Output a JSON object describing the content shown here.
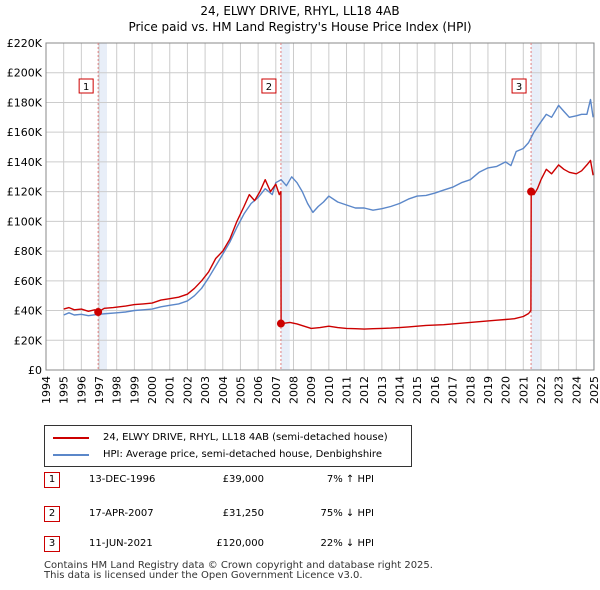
{
  "title_line1": "24, ELWY DRIVE, RHYL, LL18 4AB",
  "title_line2": "Price paid vs. HM Land Registry's House Price Index (HPI)",
  "chart_data": {
    "type": "line",
    "title": "24, ELWY DRIVE, RHYL, LL18 4AB — Price paid vs. HM Land Registry's House Price Index (HPI)",
    "xlabel": "",
    "ylabel": "",
    "xlim": [
      1994,
      2025
    ],
    "ylim": [
      0,
      220000
    ],
    "y_ticks": [
      0,
      20000,
      40000,
      60000,
      80000,
      100000,
      120000,
      140000,
      160000,
      180000,
      200000,
      220000
    ],
    "y_tick_labels": [
      "£0",
      "£20K",
      "£40K",
      "£60K",
      "£80K",
      "£100K",
      "£120K",
      "£140K",
      "£160K",
      "£180K",
      "£200K",
      "£220K"
    ],
    "x_ticks": [
      1994,
      1995,
      1996,
      1997,
      1998,
      1999,
      2000,
      2001,
      2002,
      2003,
      2004,
      2005,
      2006,
      2007,
      2008,
      2009,
      2010,
      2011,
      2012,
      2013,
      2014,
      2015,
      2016,
      2017,
      2018,
      2019,
      2020,
      2021,
      2022,
      2023,
      2024,
      2025
    ],
    "x_tick_labels": [
      "1994",
      "1995",
      "1996",
      "1997",
      "1998",
      "1999",
      "2000",
      "2001",
      "2002",
      "2003",
      "2004",
      "2005",
      "2006",
      "2007",
      "2008",
      "2009",
      "2010",
      "2011",
      "2012",
      "2013",
      "2014",
      "2015",
      "2016",
      "2017",
      "2018",
      "2019",
      "2020",
      "2021",
      "2022",
      "2023",
      "2024",
      "2025"
    ],
    "grid": true,
    "series": [
      {
        "name": "24, ELWY DRIVE, RHYL, LL18 4AB (semi-detached house)",
        "color": "#cc0000",
        "x": [
          1995.0,
          1995.3,
          1995.6,
          1996.0,
          1996.4,
          1996.75,
          1996.95,
          1997.3,
          1997.8,
          1998.5,
          1999.0,
          1999.5,
          2000.0,
          2000.5,
          2001.0,
          2001.5,
          2002.0,
          2002.4,
          2002.8,
          2003.2,
          2003.6,
          2004.0,
          2004.4,
          2004.8,
          2005.2,
          2005.5,
          2005.8,
          2006.1,
          2006.4,
          2006.7,
          2007.0,
          2007.2,
          2007.29,
          2007.3,
          2007.5,
          2007.8,
          2008.2,
          2008.6,
          2009.0,
          2009.5,
          2010.0,
          2010.5,
          2011.0,
          2011.5,
          2012.0,
          2012.5,
          2013.0,
          2013.5,
          2014.0,
          2014.5,
          2015.0,
          2015.5,
          2016.0,
          2016.5,
          2017.0,
          2017.5,
          2018.0,
          2018.5,
          2019.0,
          2019.5,
          2020.0,
          2020.5,
          2021.0,
          2021.3,
          2021.43,
          2021.45,
          2021.6,
          2021.8,
          2022.0,
          2022.3,
          2022.6,
          2023.0,
          2023.3,
          2023.6,
          2024.0,
          2024.3,
          2024.6,
          2024.8,
          2024.95
        ],
        "y": [
          41000,
          42000,
          40500,
          41000,
          39500,
          40500,
          39000,
          41500,
          42000,
          43000,
          44000,
          44500,
          45000,
          47000,
          48000,
          49000,
          51000,
          55000,
          60000,
          66000,
          75000,
          80000,
          88000,
          100000,
          110000,
          118000,
          114000,
          120000,
          128000,
          120000,
          125000,
          118000,
          120000,
          31250,
          31500,
          32000,
          31000,
          29500,
          28000,
          28500,
          29500,
          28500,
          28000,
          27800,
          27500,
          27800,
          28000,
          28200,
          28500,
          29000,
          29500,
          30000,
          30200,
          30500,
          31000,
          31500,
          32000,
          32500,
          33000,
          33500,
          34000,
          34500,
          36000,
          38000,
          40000,
          120000,
          118000,
          122000,
          128000,
          135000,
          132000,
          138000,
          135000,
          133000,
          132000,
          134000,
          138000,
          141000,
          131000
        ]
      },
      {
        "name": "HPI: Average price, semi-detached house, Denbighshire",
        "color": "#5b87c9",
        "x": [
          1995.0,
          1995.3,
          1995.6,
          1996.0,
          1996.4,
          1996.95,
          1997.5,
          1998.0,
          1998.5,
          1999.0,
          1999.5,
          2000.0,
          2000.5,
          2001.0,
          2001.5,
          2002.0,
          2002.4,
          2002.8,
          2003.2,
          2003.6,
          2004.0,
          2004.4,
          2004.8,
          2005.2,
          2005.6,
          2006.0,
          2006.4,
          2006.8,
          2007.0,
          2007.3,
          2007.6,
          2007.9,
          2008.2,
          2008.5,
          2008.8,
          2009.1,
          2009.4,
          2009.7,
          2010.0,
          2010.5,
          2011.0,
          2011.5,
          2012.0,
          2012.5,
          2013.0,
          2013.5,
          2014.0,
          2014.5,
          2015.0,
          2015.5,
          2016.0,
          2016.5,
          2017.0,
          2017.5,
          2018.0,
          2018.5,
          2019.0,
          2019.5,
          2020.0,
          2020.3,
          2020.6,
          2021.0,
          2021.3,
          2021.6,
          2022.0,
          2022.3,
          2022.6,
          2023.0,
          2023.3,
          2023.6,
          2024.0,
          2024.3,
          2024.6,
          2024.8,
          2024.95
        ],
        "y": [
          37000,
          38500,
          37000,
          37500,
          36500,
          37500,
          38000,
          38500,
          39000,
          40000,
          40500,
          41000,
          42500,
          43500,
          44500,
          46500,
          50000,
          55000,
          62000,
          70000,
          78000,
          86000,
          96000,
          105000,
          112000,
          116000,
          122000,
          118000,
          126000,
          128000,
          124000,
          130000,
          126000,
          120000,
          112000,
          106000,
          110000,
          113000,
          117000,
          113000,
          111000,
          109000,
          109000,
          107500,
          108500,
          110000,
          112000,
          115000,
          117000,
          117500,
          119000,
          121000,
          123000,
          126000,
          128000,
          133000,
          136000,
          137000,
          140000,
          137500,
          147000,
          149000,
          153000,
          160000,
          167000,
          172000,
          170000,
          178000,
          174000,
          170000,
          171000,
          172000,
          172000,
          182000,
          170000
        ]
      }
    ],
    "markers": [
      {
        "label": "1",
        "x": 1996.95
      },
      {
        "label": "2",
        "x": 2007.29
      },
      {
        "label": "3",
        "x": 2021.44
      }
    ],
    "sale_points": [
      {
        "x": 1996.95,
        "y": 39000
      },
      {
        "x": 2007.29,
        "y": 31250
      },
      {
        "x": 2021.44,
        "y": 120000
      }
    ],
    "legend_position": "below"
  },
  "legend": [
    {
      "label": "24, ELWY DRIVE, RHYL, LL18 4AB (semi-detached house)",
      "color": "#cc0000"
    },
    {
      "label": "HPI: Average price, semi-detached house, Denbighshire",
      "color": "#5b87c9"
    }
  ],
  "sales": [
    {
      "num": "1",
      "date": "13-DEC-1996",
      "price": "£39,000",
      "hpi": "7% ↑ HPI"
    },
    {
      "num": "2",
      "date": "17-APR-2007",
      "price": "£31,250",
      "hpi": "75% ↓ HPI"
    },
    {
      "num": "3",
      "date": "11-JUN-2021",
      "price": "£120,000",
      "hpi": "22% ↓ HPI"
    }
  ],
  "footer_line1": "Contains HM Land Registry data © Crown copyright and database right 2025.",
  "footer_line2": "This data is licensed under the Open Government Licence v3.0."
}
